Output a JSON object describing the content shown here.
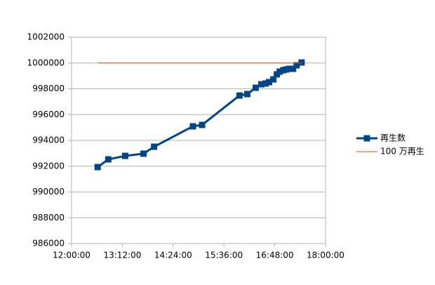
{
  "chart_data": {
    "type": "line",
    "xlim": [
      720,
      1080
    ],
    "xticks": [
      {
        "value": 720,
        "label": "12:00:00"
      },
      {
        "value": 792,
        "label": "13:12:00"
      },
      {
        "value": 864,
        "label": "14:24:00"
      },
      {
        "value": 936,
        "label": "15:36:00"
      },
      {
        "value": 1008,
        "label": "16:48:00"
      },
      {
        "value": 1080,
        "label": "18:00:00"
      }
    ],
    "ylim": [
      986000,
      1002000
    ],
    "yticks": [
      986000,
      988000,
      990000,
      992000,
      994000,
      996000,
      998000,
      1000000,
      1002000
    ],
    "grid": true,
    "legend": "right",
    "series": [
      {
        "name": "再生数",
        "color": "#004586",
        "marker": "square",
        "x": [
          757,
          772,
          796,
          822,
          837,
          892,
          905,
          958,
          969,
          981,
          989,
          995,
          1000,
          1006,
          1011,
          1015,
          1020,
          1024,
          1029,
          1034,
          1039,
          1046
        ],
        "values": [
          991930,
          992530,
          992800,
          992970,
          993510,
          995090,
          995200,
          997480,
          997590,
          998080,
          998350,
          998410,
          998520,
          998730,
          999120,
          999330,
          999440,
          999500,
          999550,
          999550,
          999820,
          1000040
        ]
      },
      {
        "name": "100 万再生",
        "color": "#ff420e",
        "marker": "none",
        "x": [
          757,
          1046
        ],
        "values": [
          1000000,
          1000000
        ]
      }
    ]
  }
}
